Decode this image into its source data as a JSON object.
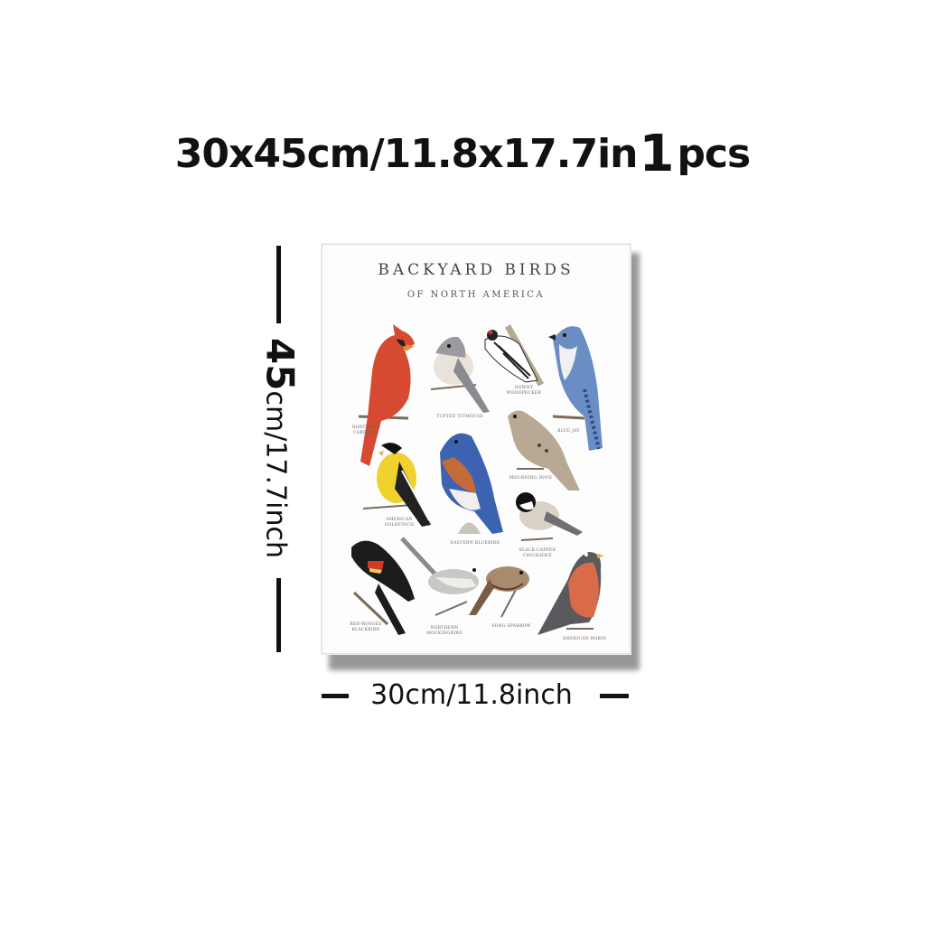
{
  "headline": {
    "size": "30x45cm/11.8x17.7in",
    "qty": "1",
    "unit": "pcs"
  },
  "poster": {
    "title": "BACKYARD BIRDS",
    "subtitle": "OF NORTH AMERICA",
    "birds": [
      {
        "label": "NORTHERN CARDINAL"
      },
      {
        "label": "TUFTED TITMOUSE"
      },
      {
        "label": "DOWNY WOODPECKER"
      },
      {
        "label": "BLUE JAY"
      },
      {
        "label": "AMERICAN GOLDFINCH"
      },
      {
        "label": "EASTERN BLUEBIRD"
      },
      {
        "label": "MOURNING DOVE"
      },
      {
        "label": "BLACK-CAPPED CHICKADEE"
      },
      {
        "label": "RED-WINGED BLACKBIRD"
      },
      {
        "label": "NORTHERN MOCKINGBIRD"
      },
      {
        "label": "SONG SPARROW"
      },
      {
        "label": "AMERICAN ROBIN"
      }
    ]
  },
  "dimensions": {
    "height_big": "45",
    "height_rest": "cm/17.7inch",
    "width": "30cm/11.8inch"
  }
}
